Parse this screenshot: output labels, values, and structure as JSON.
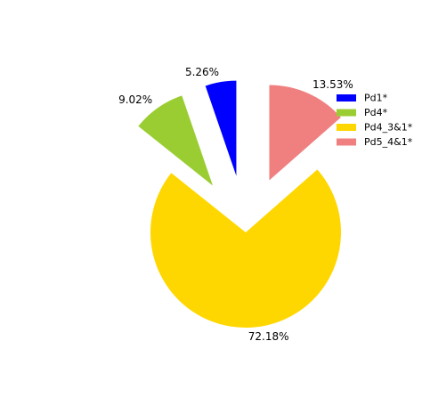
{
  "chart_data": {
    "type": "pie",
    "title": "",
    "categories": [
      "Pd1*",
      "Pd4*",
      "Pd4_3&1*",
      "Pd5_4&1*"
    ],
    "values": [
      5.26,
      9.02,
      72.18,
      13.53
    ],
    "labels": [
      "5.26%",
      "9.02%",
      "72.18%",
      "13.53%"
    ],
    "colors": [
      "#0000ff",
      "#9acd32",
      "#ffd700",
      "#f08080"
    ],
    "exploded": [
      true,
      true,
      false,
      true
    ],
    "start_angle_deg": 90,
    "direction": "counterclockwise",
    "legend": {
      "position": "top-right",
      "entries": [
        "Pd1*",
        "Pd4*",
        "Pd4_3&1*",
        "Pd5_4&1*"
      ]
    }
  }
}
